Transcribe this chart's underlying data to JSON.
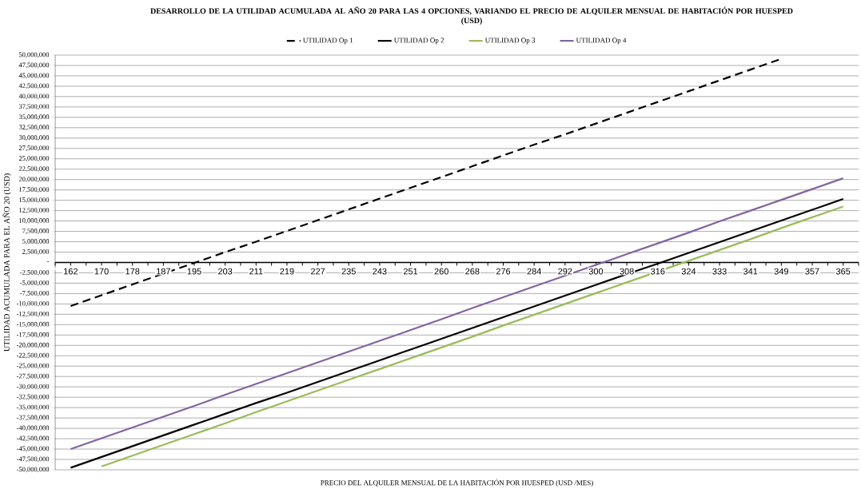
{
  "chart_data": {
    "type": "line",
    "title": "DESARROLLO DE LA UTILIDAD ACUMULADA AL AÑO 20 PARA LAS 4 OPCIONES, VARIANDO EL PRECIO DE ALQUILER MENSUAL DE HABITACIÓN POR HUESPED  (USD)",
    "xlabel": "PRECIO DEL ALQUILER MENSUAL DE LA HABITACIÓN POR HUESPED (USD /MES)",
    "ylabel": "UTILIDAD ACUMULADA  PARA EL AÑO 20 (USD)",
    "categories": [
      "162",
      "170",
      "178",
      "187",
      "195",
      "203",
      "211",
      "219",
      "227",
      "235",
      "243",
      "251",
      "260",
      "268",
      "276",
      "284",
      "292",
      "300",
      "308",
      "316",
      "324",
      "333",
      "341",
      "349",
      "357",
      "365"
    ],
    "series": [
      {
        "name": "UTILIDAD Op 1",
        "color": "#000000",
        "line_style": "dashed",
        "values": [
          -10500000,
          -7900000,
          -5300000,
          -2700000,
          -100000,
          2500000,
          5000000,
          7600000,
          10200000,
          12800000,
          15400000,
          18000000,
          20600000,
          23200000,
          25800000,
          28400000,
          30900000,
          33500000,
          36100000,
          38700000,
          41300000,
          43900000,
          46500000,
          49100000,
          null,
          null
        ]
      },
      {
        "name": "UTILIDAD Op 2",
        "color": "#000000",
        "line_style": "solid",
        "values": [
          -49500000,
          -46900000,
          -44300000,
          -41700000,
          -39100000,
          -36500000,
          -33900000,
          -31400000,
          -28800000,
          -26200000,
          -23600000,
          -21000000,
          -18400000,
          -15800000,
          -13200000,
          -10600000,
          -8000000,
          -5400000,
          -2800000,
          -300000,
          2300000,
          4900000,
          7500000,
          10100000,
          12700000,
          15300000
        ]
      },
      {
        "name": "UTILIDAD Op 3",
        "color": "#9bbb59",
        "line_style": "solid",
        "values": [
          null,
          -49200000,
          -46600000,
          -44000000,
          -41400000,
          -38800000,
          -36100000,
          -33500000,
          -30900000,
          -28300000,
          -25700000,
          -23100000,
          -20500000,
          -17900000,
          -15200000,
          -12600000,
          -10000000,
          -7400000,
          -4800000,
          -2200000,
          400000,
          3000000,
          5600000,
          8300000,
          10900000,
          13500000
        ]
      },
      {
        "name": "UTILIDAD Op 4",
        "color": "#8064a2",
        "line_style": "solid",
        "values": [
          -45000000,
          -42400000,
          -39800000,
          -37200000,
          -34600000,
          -31900000,
          -29300000,
          -26700000,
          -24100000,
          -21500000,
          -18900000,
          -16300000,
          -13700000,
          -11000000,
          -8400000,
          -5800000,
          -3200000,
          -600000,
          2000000,
          4600000,
          7200000,
          9900000,
          12500000,
          15100000,
          17700000,
          20300000
        ]
      }
    ],
    "ylim": [
      -50000000,
      50000000
    ],
    "yticks": [
      {
        "value": -50000000,
        "label": "-50,000,000"
      },
      {
        "value": -47500000,
        "label": "-47,500,000"
      },
      {
        "value": -45000000,
        "label": "-45,000,000"
      },
      {
        "value": -42500000,
        "label": "-42,500,000"
      },
      {
        "value": -40000000,
        "label": "-40,000,000"
      },
      {
        "value": -37500000,
        "label": "-37,500,000"
      },
      {
        "value": -35000000,
        "label": "-35,000,000"
      },
      {
        "value": -32500000,
        "label": "-32,500,000"
      },
      {
        "value": -30000000,
        "label": "-30,000,000"
      },
      {
        "value": -27500000,
        "label": "-27,500,000"
      },
      {
        "value": -25000000,
        "label": "-25,000,000"
      },
      {
        "value": -22500000,
        "label": "-22,500,000"
      },
      {
        "value": -20000000,
        "label": "-20,000,000"
      },
      {
        "value": -17500000,
        "label": "-17,500,000"
      },
      {
        "value": -15000000,
        "label": "-15,000,000"
      },
      {
        "value": -12500000,
        "label": "-12,500,000"
      },
      {
        "value": -10000000,
        "label": "-10,000,000"
      },
      {
        "value": -7500000,
        "label": "-7,500,000"
      },
      {
        "value": -5000000,
        "label": "-5,000,000"
      },
      {
        "value": -2500000,
        "label": "-2,500,000"
      },
      {
        "value": 0,
        "label": "-"
      },
      {
        "value": 2500000,
        "label": "2,500,000"
      },
      {
        "value": 5000000,
        "label": "5,000,000"
      },
      {
        "value": 7500000,
        "label": "7,500,000"
      },
      {
        "value": 10000000,
        "label": "10,000,000"
      },
      {
        "value": 12500000,
        "label": "12,500,000"
      },
      {
        "value": 15000000,
        "label": "15,000,000"
      },
      {
        "value": 17500000,
        "label": "17,500,000"
      },
      {
        "value": 20000000,
        "label": "20,000,000"
      },
      {
        "value": 22500000,
        "label": "22,500,000"
      },
      {
        "value": 25000000,
        "label": "25,000,000"
      },
      {
        "value": 27500000,
        "label": "27,500,000"
      },
      {
        "value": 30000000,
        "label": "30,000,000"
      },
      {
        "value": 32500000,
        "label": "32,500,000"
      },
      {
        "value": 35000000,
        "label": "35,000,000"
      },
      {
        "value": 37500000,
        "label": "37,500,000"
      },
      {
        "value": 40000000,
        "label": "40,000,000"
      },
      {
        "value": 42500000,
        "label": "42,500,000"
      },
      {
        "value": 45000000,
        "label": "45,000,000"
      },
      {
        "value": 47500000,
        "label": "47,500,000"
      },
      {
        "value": 50000000,
        "label": "50,000,000"
      }
    ],
    "grid": "y",
    "legend": "top",
    "marker": "none"
  }
}
